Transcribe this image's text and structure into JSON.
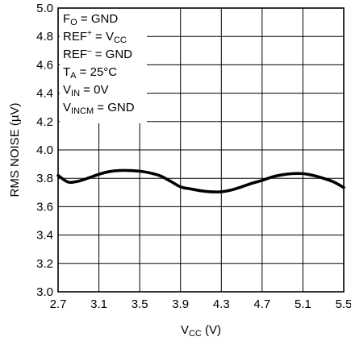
{
  "chart_data": {
    "type": "line",
    "xlabel": {
      "main": "V",
      "sub": "CC",
      "unit": " (V)"
    },
    "ylabel": "RMS NOISE (µV)",
    "xlim": [
      2.7,
      5.5
    ],
    "ylim": [
      3.0,
      5.0
    ],
    "x_ticks": [
      2.7,
      3.1,
      3.5,
      3.9,
      4.3,
      4.7,
      5.1,
      5.5
    ],
    "x_tick_labels": [
      "2.7",
      "3.1",
      "3.5",
      "3.9",
      "4.3",
      "4.7",
      "5.1",
      "5.5"
    ],
    "y_ticks": [
      3.0,
      3.2,
      3.4,
      3.6,
      3.8,
      4.0,
      4.2,
      4.4,
      4.6,
      4.8,
      5.0
    ],
    "y_tick_labels": [
      "3.0",
      "3.2",
      "3.4",
      "3.6",
      "3.8",
      "4.0",
      "4.2",
      "4.4",
      "4.6",
      "4.8",
      "5.0"
    ],
    "grid": true,
    "series": [
      {
        "color": "#000000",
        "x": [
          2.7,
          2.8,
          2.9,
          3.0,
          3.1,
          3.2,
          3.3,
          3.4,
          3.5,
          3.6,
          3.7,
          3.8,
          3.9,
          4.0,
          4.1,
          4.2,
          4.3,
          4.4,
          4.5,
          4.6,
          4.7,
          4.8,
          4.9,
          5.0,
          5.1,
          5.2,
          5.3,
          5.4,
          5.5
        ],
        "y": [
          3.82,
          3.773,
          3.78,
          3.803,
          3.828,
          3.847,
          3.855,
          3.855,
          3.85,
          3.838,
          3.818,
          3.78,
          3.74,
          3.725,
          3.712,
          3.705,
          3.705,
          3.718,
          3.74,
          3.765,
          3.785,
          3.81,
          3.825,
          3.833,
          3.833,
          3.82,
          3.8,
          3.775,
          3.735
        ]
      }
    ],
    "annotations": [
      {
        "main": "F",
        "sub": "O",
        "rest": " = GND"
      },
      {
        "main": "REF",
        "sup": "+",
        "rest": " = V",
        "sub2": "CC"
      },
      {
        "main": "REF",
        "sup": "–",
        "rest": " = GND"
      },
      {
        "main": "T",
        "sub": "A",
        "rest": " = 25°C"
      },
      {
        "main": "V",
        "sub": "IN",
        "rest": " = 0V"
      },
      {
        "main": "V",
        "sub": "INCM",
        "rest": " = GND"
      }
    ]
  }
}
